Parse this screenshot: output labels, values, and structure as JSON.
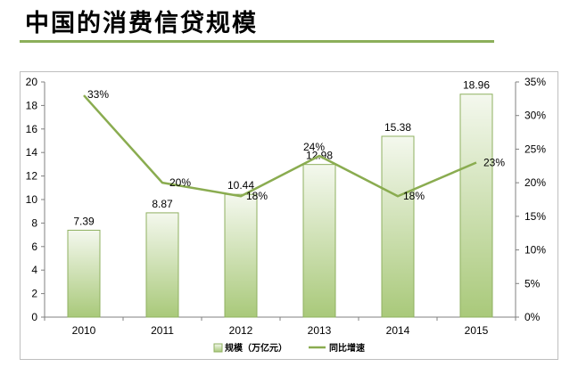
{
  "title": "中国的消费信贷规模",
  "colors": {
    "accent": "#8caf5a",
    "bar_top": "#f4f8ee",
    "bar_bottom": "#a9c97a",
    "bar_stroke": "#8fb060",
    "line": "#8aac50",
    "axis": "#808080"
  },
  "chart_data": {
    "type": "bar",
    "categories": [
      "2010",
      "2011",
      "2012",
      "2013",
      "2014",
      "2015"
    ],
    "series": [
      {
        "name": "规模（万亿元）",
        "type": "bar",
        "axis": "left",
        "values": [
          7.39,
          8.87,
          10.44,
          12.98,
          15.38,
          18.96
        ],
        "labels": [
          "7.39",
          "8.87",
          "10.44",
          "12.98",
          "15.38",
          "18.96"
        ]
      },
      {
        "name": "同比增速",
        "type": "line",
        "axis": "right",
        "values": [
          33,
          20,
          18,
          24,
          18,
          23
        ],
        "labels": [
          "33%",
          "20%",
          "18%",
          "24%",
          "18%",
          "23%"
        ]
      }
    ],
    "y_left": {
      "min": 0,
      "max": 20,
      "step": 2,
      "ticks": [
        "0",
        "2",
        "4",
        "6",
        "8",
        "10",
        "12",
        "14",
        "16",
        "18",
        "20"
      ]
    },
    "y_right": {
      "min": 0,
      "max": 35,
      "step": 5,
      "ticks": [
        "0%",
        "5%",
        "10%",
        "15%",
        "20%",
        "25%",
        "30%",
        "35%"
      ]
    },
    "grid": false,
    "legend": "bottom"
  }
}
